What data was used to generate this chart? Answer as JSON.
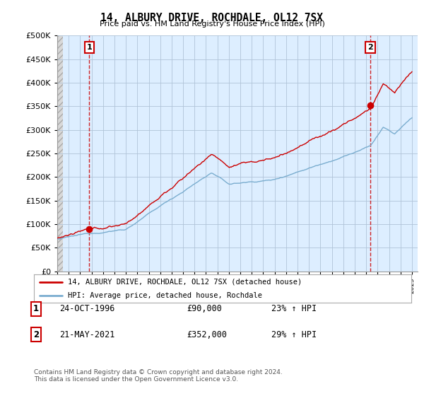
{
  "title": "14, ALBURY DRIVE, ROCHDALE, OL12 7SX",
  "subtitle": "Price paid vs. HM Land Registry's House Price Index (HPI)",
  "ylim": [
    0,
    500000
  ],
  "yticks": [
    0,
    50000,
    100000,
    150000,
    200000,
    250000,
    300000,
    350000,
    400000,
    450000,
    500000
  ],
  "sale1_date": "24-OCT-1996",
  "sale1_price": 90000,
  "sale1_year": 1996.8,
  "sale1_pct": "23%",
  "sale2_date": "21-MAY-2021",
  "sale2_price": 352000,
  "sale2_year": 2021.37,
  "sale2_pct": "29%",
  "legend_label1": "14, ALBURY DRIVE, ROCHDALE, OL12 7SX (detached house)",
  "legend_label2": "HPI: Average price, detached house, Rochdale",
  "red_color": "#cc0000",
  "blue_color": "#7aadcf",
  "chart_bg": "#ddeeff",
  "hatch_bg": "#d8d8d8",
  "footer": "Contains HM Land Registry data © Crown copyright and database right 2024.\nThis data is licensed under the Open Government Licence v3.0.",
  "background_color": "#ffffff",
  "grid_color": "#b0c4d8"
}
